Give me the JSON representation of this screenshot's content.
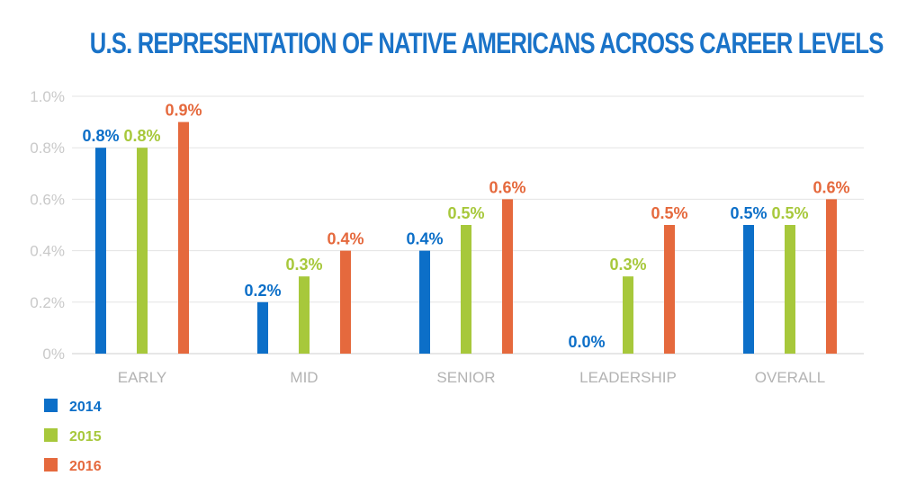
{
  "title": "U.S. REPRESENTATION OF NATIVE AMERICANS ACROSS CAREER LEVELS",
  "chart_data": {
    "type": "bar",
    "title": "U.S. REPRESENTATION OF NATIVE AMERICANS ACROSS CAREER LEVELS",
    "categories": [
      "EARLY",
      "MID",
      "SENIOR",
      "LEADERSHIP",
      "OVERALL"
    ],
    "series": [
      {
        "name": "2014",
        "color": "#0c6fc8",
        "values": [
          0.8,
          0.2,
          0.4,
          0.0,
          0.5
        ],
        "labels": [
          "0.8%",
          "0.2%",
          "0.4%",
          "0.0%",
          "0.5%"
        ]
      },
      {
        "name": "2015",
        "color": "#a7c83b",
        "values": [
          0.8,
          0.3,
          0.5,
          0.3,
          0.5
        ],
        "labels": [
          "0.8%",
          "0.3%",
          "0.5%",
          "0.3%",
          "0.5%"
        ]
      },
      {
        "name": "2016",
        "color": "#e5693d",
        "values": [
          0.9,
          0.4,
          0.6,
          0.5,
          0.6
        ],
        "labels": [
          "0.9%",
          "0.4%",
          "0.6%",
          "0.5%",
          "0.6%"
        ]
      }
    ],
    "ylim": [
      0,
      1.0
    ],
    "yticks": [
      0,
      0.2,
      0.4,
      0.6,
      0.8,
      1.0
    ],
    "ytick_labels": [
      "0%",
      "0.2%",
      "0.4%",
      "0.6%",
      "0.8%",
      "1.0%"
    ],
    "grid": true,
    "legend_position": "bottom-left",
    "xlabel": "",
    "ylabel": ""
  }
}
